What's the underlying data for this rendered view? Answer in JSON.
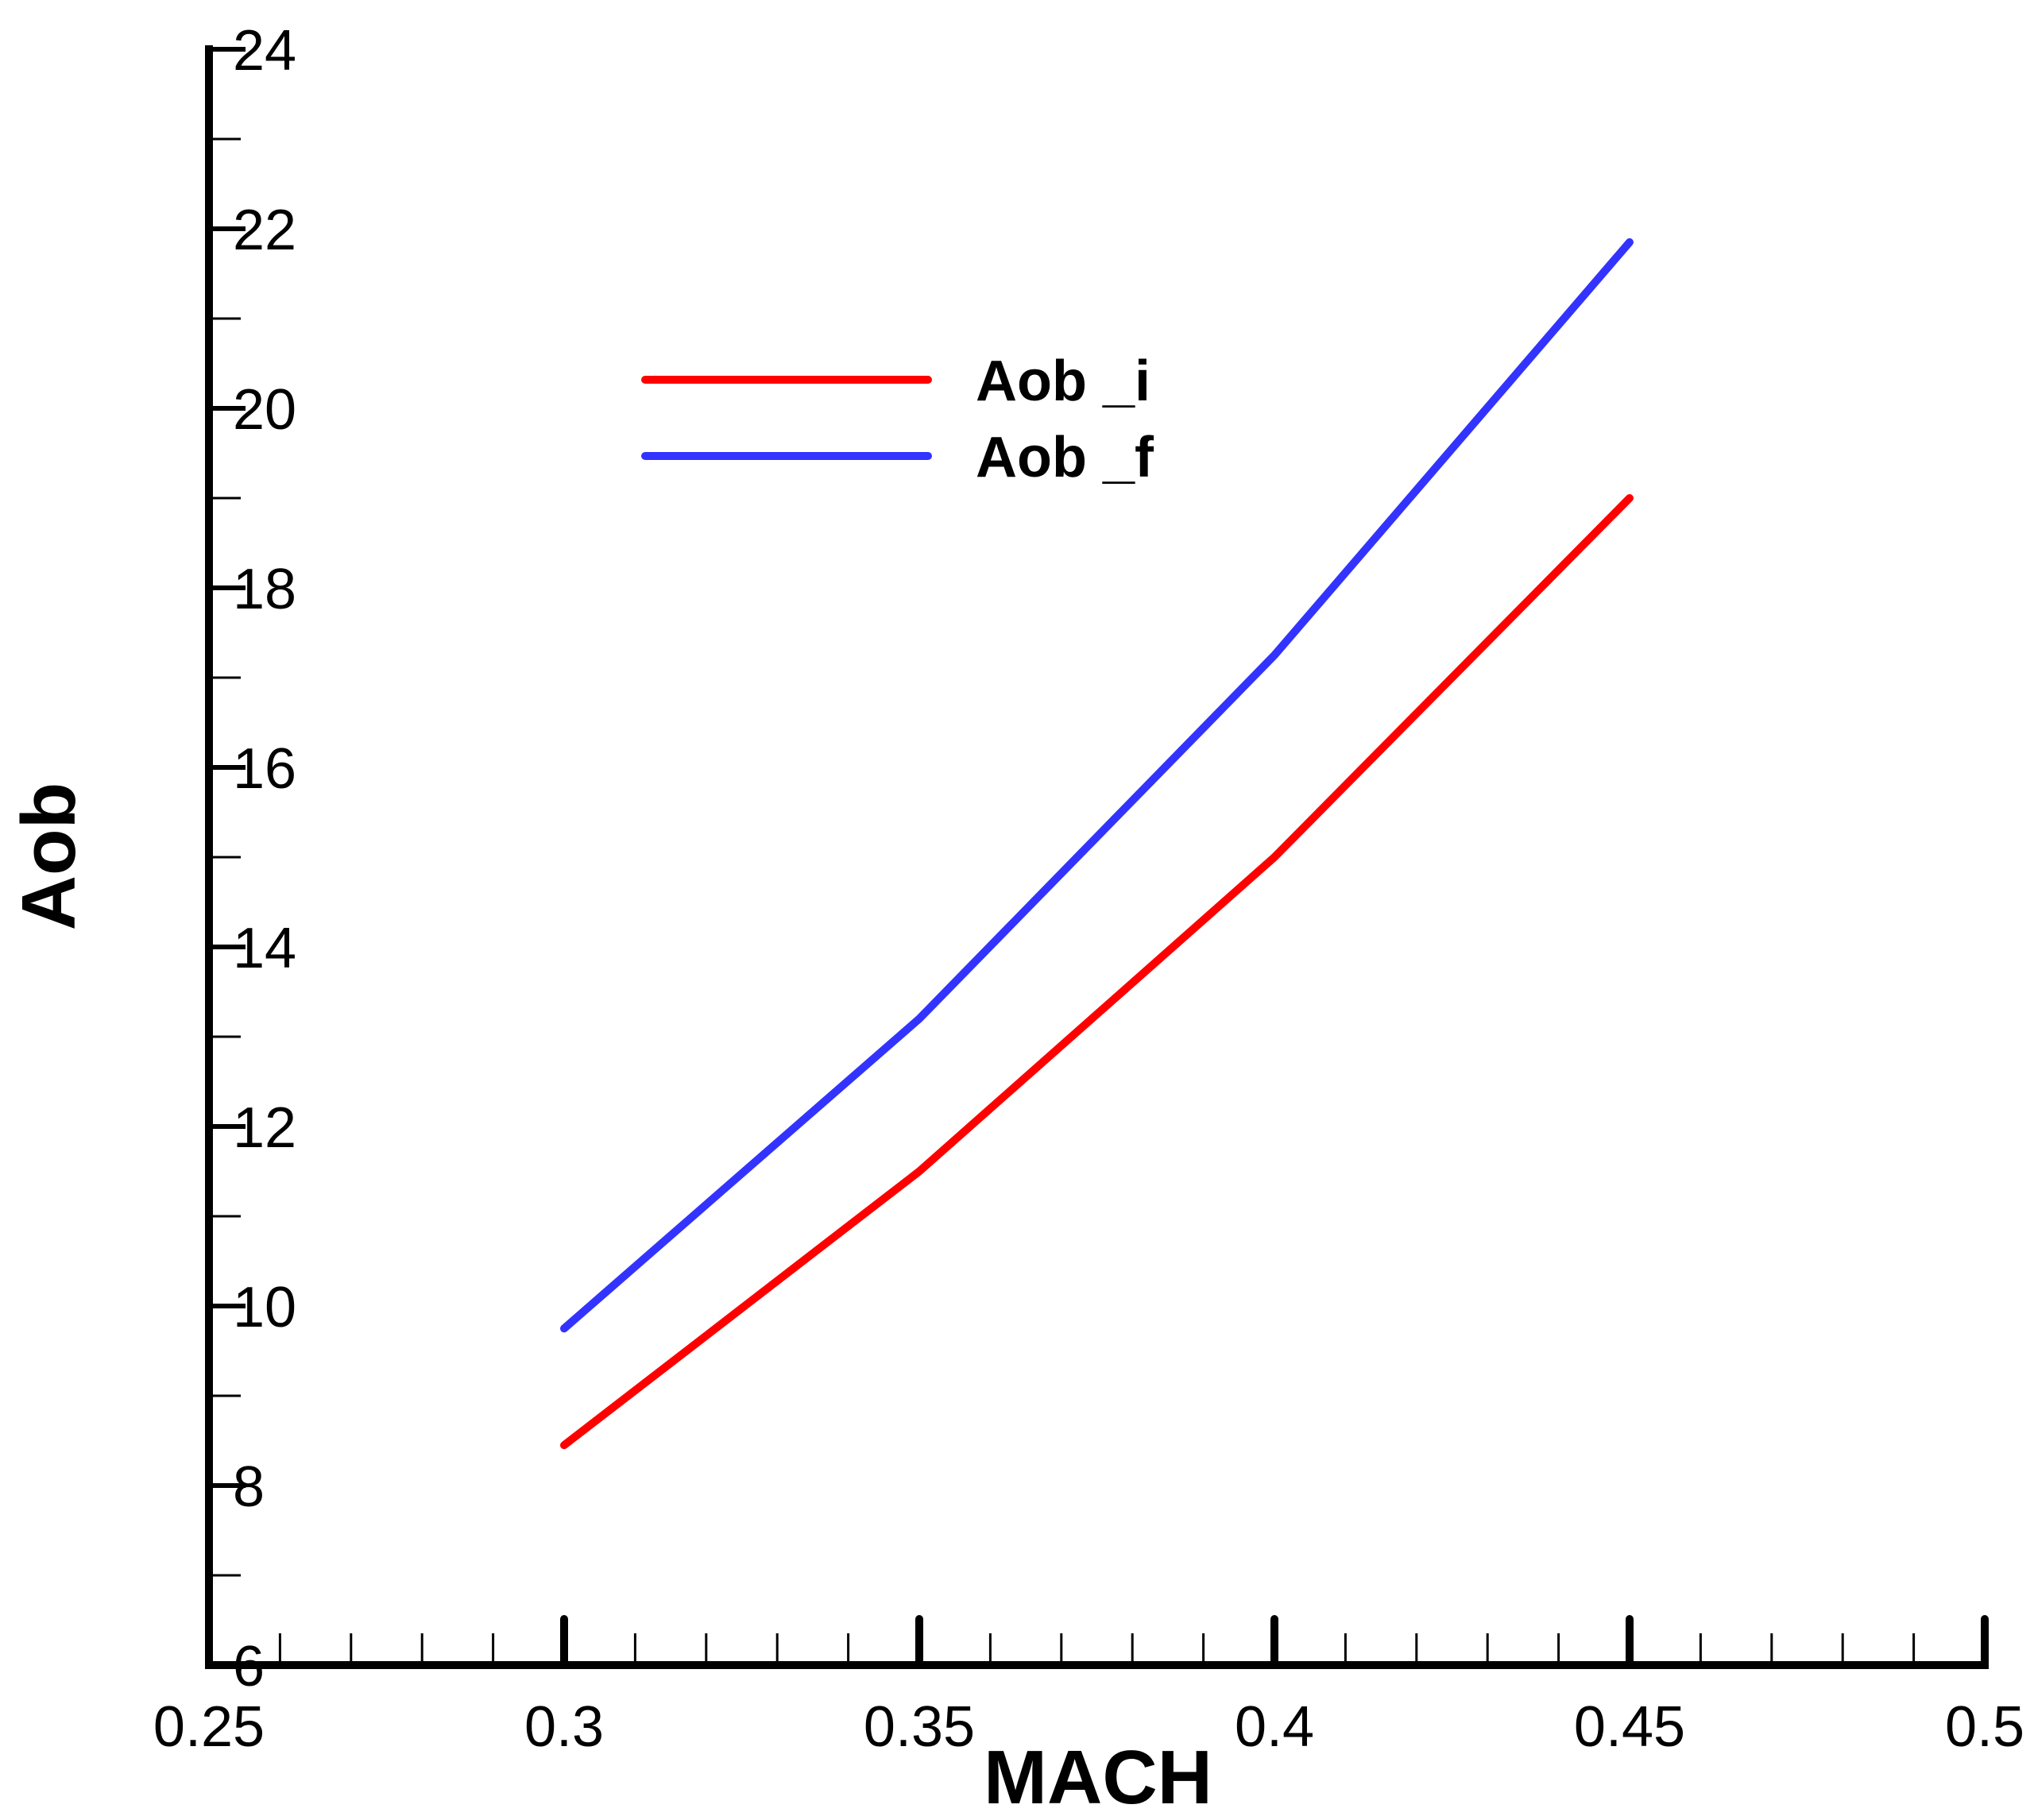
{
  "chart_data": {
    "type": "line",
    "xlabel": "MACH",
    "ylabel": "Aob",
    "xlim": [
      0.25,
      0.5
    ],
    "ylim": [
      6,
      24
    ],
    "x_ticks": [
      "0.25",
      "0.3",
      "0.35",
      "0.4",
      "0.45",
      "0.5"
    ],
    "y_ticks": [
      "6",
      "8",
      "10",
      "12",
      "14",
      "16",
      "18",
      "20",
      "22",
      "24"
    ],
    "x": [
      0.3,
      0.35,
      0.4,
      0.45
    ],
    "series": [
      {
        "name": "Aob _i",
        "color": "#ff0000",
        "values": [
          8.45,
          11.5,
          15.0,
          19.0
        ]
      },
      {
        "name": "Aob _f",
        "color": "#3333ff",
        "values": [
          9.75,
          13.2,
          17.25,
          21.85
        ]
      }
    ],
    "legend": {
      "position": "top-left",
      "entries": [
        "Aob _i",
        "Aob _f"
      ]
    },
    "grid": false
  }
}
